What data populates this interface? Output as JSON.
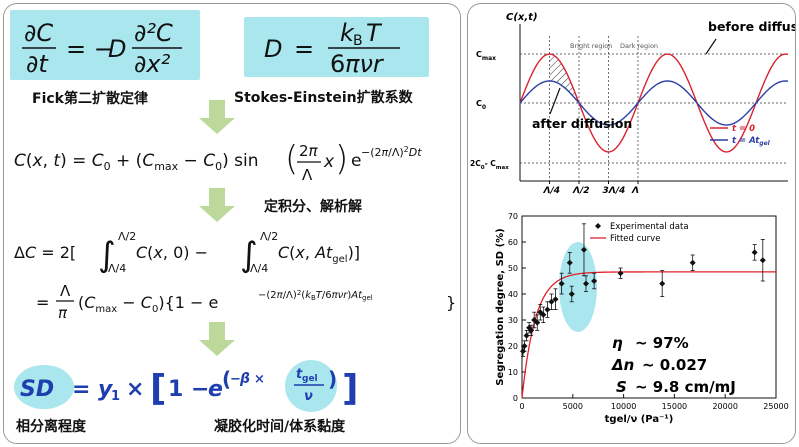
{
  "left": {
    "fick_label": "Fick第二扩散定律",
    "stokes_label": "Stokes-Einstein扩散系数",
    "integral_label": "定积分、解析解",
    "sd_label": "相分离程度",
    "gel_label": "凝胶化时间/体系黏度"
  },
  "cosine_plot": {
    "y_axis_label": "C(x,t)",
    "y_ticks": [
      "C",
      "C",
      "2C  - C"
    ],
    "y_tick_subs": [
      "max",
      "0",
      "0",
      "max"
    ],
    "x_ticks": [
      "Λ/4",
      "Λ/2",
      "3Λ/4",
      "Λ"
    ],
    "bright_region": "Bright region",
    "dark_region": "Dark region",
    "before_label": "before diffusion",
    "after_label": "after diffusion",
    "legend": [
      "t = 0",
      "t = At"
    ],
    "legend_sub": "gel",
    "colors": {
      "t0": "#d9232f",
      "tgel": "#2b3fa8"
    }
  },
  "chart_data": {
    "type": "scatter",
    "xlabel": "tgel/ν (Pa⁻¹)",
    "ylabel": "Segregation degree, SD (%)",
    "xlim": [
      0,
      25000
    ],
    "ylim": [
      0,
      70
    ],
    "x_ticks": [
      0,
      5000,
      10000,
      15000,
      20000,
      25000
    ],
    "y_ticks": [
      0,
      10,
      20,
      30,
      40,
      50,
      60,
      70
    ],
    "legend": [
      "Experimental data",
      "Fitted curve"
    ],
    "series": [
      {
        "name": "Experimental data",
        "points": [
          {
            "x": 100,
            "y": 18,
            "err": 2
          },
          {
            "x": 250,
            "y": 20,
            "err": 2
          },
          {
            "x": 450,
            "y": 24,
            "err": 2
          },
          {
            "x": 700,
            "y": 27,
            "err": 2
          },
          {
            "x": 900,
            "y": 26,
            "err": 2
          },
          {
            "x": 1200,
            "y": 30,
            "err": 3
          },
          {
            "x": 1500,
            "y": 29,
            "err": 3
          },
          {
            "x": 1800,
            "y": 33,
            "err": 3
          },
          {
            "x": 2100,
            "y": 32,
            "err": 3
          },
          {
            "x": 2500,
            "y": 34,
            "err": 3
          },
          {
            "x": 2900,
            "y": 37,
            "err": 3
          },
          {
            "x": 3300,
            "y": 38,
            "err": 4
          },
          {
            "x": 3900,
            "y": 44,
            "err": 4
          },
          {
            "x": 4700,
            "y": 52,
            "err": 4
          },
          {
            "x": 4900,
            "y": 40,
            "err": 3
          },
          {
            "x": 6100,
            "y": 57,
            "err": 10
          },
          {
            "x": 6300,
            "y": 44,
            "err": 3
          },
          {
            "x": 7100,
            "y": 45,
            "err": 3
          },
          {
            "x": 9700,
            "y": 48,
            "err": 2
          },
          {
            "x": 13800,
            "y": 44,
            "err": 5
          },
          {
            "x": 16800,
            "y": 52,
            "err": 3
          },
          {
            "x": 22900,
            "y": 56,
            "err": 3
          },
          {
            "x": 23700,
            "y": 53,
            "err": 8
          }
        ]
      },
      {
        "name": "Fitted curve",
        "y1": 48.5,
        "beta": 0.00075
      }
    ]
  },
  "params": {
    "eta_sym": "η",
    "eta_val": "~ 97%",
    "dn_sym": "Δn",
    "dn_val": "~ 0.027",
    "s_sym": "S",
    "s_val": "~ 9.8 cm/mJ"
  }
}
